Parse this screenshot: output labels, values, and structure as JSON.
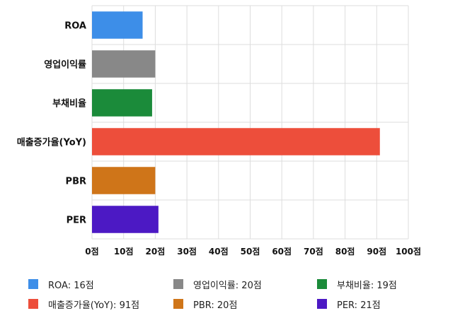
{
  "chart_data": {
    "type": "bar",
    "orientation": "horizontal",
    "categories": [
      "ROA",
      "영업이익률",
      "부채비율",
      "매출증가율(YoY)",
      "PBR",
      "PER"
    ],
    "values": [
      16,
      20,
      19,
      91,
      20,
      21
    ],
    "colors": [
      "#3d8ee8",
      "#888888",
      "#1b8b3a",
      "#ed4e3b",
      "#cf7519",
      "#4c19c4"
    ],
    "xlim": [
      0,
      100
    ],
    "x_ticks": [
      0,
      10,
      20,
      30,
      40,
      50,
      60,
      70,
      80,
      90,
      100
    ],
    "x_tick_labels": [
      "0점",
      "10점",
      "20점",
      "30점",
      "40점",
      "50점",
      "60점",
      "70점",
      "80점",
      "90점",
      "100점"
    ],
    "grid": true,
    "legend_position": "bottom",
    "legend": [
      {
        "label": "ROA: 16점",
        "color": "#3d8ee8"
      },
      {
        "label": "영업이익률: 20점",
        "color": "#888888"
      },
      {
        "label": "부채비율: 19점",
        "color": "#1b8b3a"
      },
      {
        "label": "매출증가율(YoY): 91점",
        "color": "#ed4e3b"
      },
      {
        "label": "PBR: 20점",
        "color": "#cf7519"
      },
      {
        "label": "PER: 21점",
        "color": "#4c19c4"
      }
    ]
  }
}
